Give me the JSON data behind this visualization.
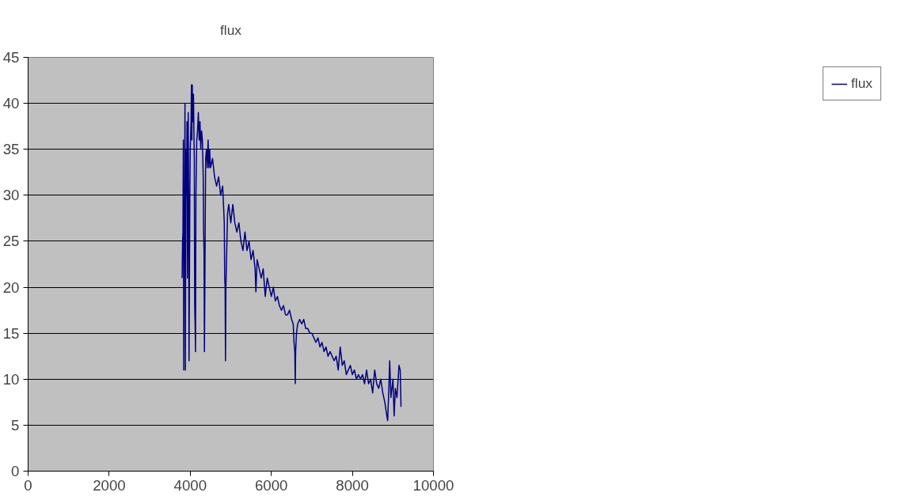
{
  "chart_data": {
    "type": "line",
    "title": "flux",
    "x": [
      3800,
      3810,
      3820,
      3830,
      3840,
      3850,
      3860,
      3870,
      3880,
      3890,
      3900,
      3910,
      3920,
      3930,
      3950,
      3960,
      3970,
      3990,
      4000,
      4020,
      4030,
      4040,
      4050,
      4060,
      4080,
      4090,
      4100,
      4110,
      4120,
      4130,
      4140,
      4160,
      4180,
      4200,
      4220,
      4240,
      4260,
      4280,
      4300,
      4320,
      4330,
      4340,
      4350,
      4360,
      4380,
      4400,
      4420,
      4440,
      4460,
      4480,
      4500,
      4550,
      4600,
      4650,
      4700,
      4750,
      4800,
      4820,
      4840,
      4850,
      4860,
      4870,
      4880,
      4900,
      4920,
      4950,
      5000,
      5050,
      5100,
      5150,
      5200,
      5250,
      5300,
      5350,
      5400,
      5450,
      5500,
      5550,
      5600,
      5620,
      5650,
      5700,
      5750,
      5800,
      5850,
      5900,
      5950,
      6000,
      6050,
      6100,
      6150,
      6200,
      6250,
      6300,
      6350,
      6400,
      6450,
      6500,
      6540,
      6560,
      6580,
      6590,
      6600,
      6620,
      6650,
      6700,
      6750,
      6800,
      6850,
      6900,
      6950,
      7000,
      7050,
      7100,
      7150,
      7200,
      7250,
      7300,
      7350,
      7400,
      7450,
      7500,
      7550,
      7600,
      7650,
      7700,
      7750,
      7800,
      7850,
      7900,
      7950,
      8000,
      8050,
      8100,
      8150,
      8200,
      8250,
      8300,
      8350,
      8400,
      8450,
      8500,
      8550,
      8600,
      8650,
      8700,
      8750,
      8800,
      8850,
      8870,
      8900,
      8920,
      8950,
      9000,
      9030,
      9060,
      9100,
      9150,
      9180,
      9200
    ],
    "series": [
      {
        "name": "flux",
        "color": "#000080",
        "values": [
          21,
          25,
          26,
          36,
          11,
          30,
          28,
          40,
          11,
          29,
          35,
          30,
          38,
          21,
          39,
          30,
          12,
          30,
          35,
          38,
          42,
          36,
          42,
          38,
          41,
          37,
          34,
          18,
          16,
          13,
          30,
          36,
          37,
          39,
          36,
          38,
          35,
          37,
          36,
          32,
          26,
          24,
          13,
          20,
          34,
          35,
          33,
          36,
          33,
          35,
          33,
          34,
          32,
          31,
          32,
          30,
          31,
          29,
          27,
          21,
          20,
          12,
          20,
          24,
          28,
          29,
          27,
          29,
          27,
          26,
          27,
          25,
          24,
          26,
          24,
          25,
          23,
          24,
          22,
          19.5,
          23,
          22,
          21,
          22,
          19,
          21,
          20,
          19,
          20,
          18.5,
          19,
          18,
          17.5,
          18,
          17,
          17,
          17.5,
          16.5,
          16,
          14,
          13,
          9.5,
          13,
          15,
          16,
          16.5,
          16,
          16.5,
          15.5,
          15.5,
          15,
          15,
          14.5,
          14,
          14.5,
          13.5,
          14,
          13,
          13.5,
          12.5,
          13,
          12.5,
          12,
          12.5,
          11,
          13.5,
          11.5,
          12,
          10.5,
          11,
          11.5,
          10.5,
          11,
          10,
          10.5,
          10,
          10.5,
          9.5,
          11,
          9.5,
          10,
          8.5,
          11,
          9.5,
          9,
          10,
          8.5,
          7.5,
          6,
          5.5,
          9,
          12,
          8,
          10,
          6,
          9,
          8,
          11.5,
          11,
          7
        ]
      }
    ],
    "xlim": [
      0,
      10000
    ],
    "xticks": [
      0,
      2000,
      4000,
      6000,
      8000,
      10000
    ],
    "ylim": [
      0,
      45
    ],
    "yticks": [
      0,
      5,
      10,
      15,
      20,
      25,
      30,
      35,
      40,
      45
    ],
    "grid": "y",
    "legend": "right",
    "line_style": "solid"
  }
}
